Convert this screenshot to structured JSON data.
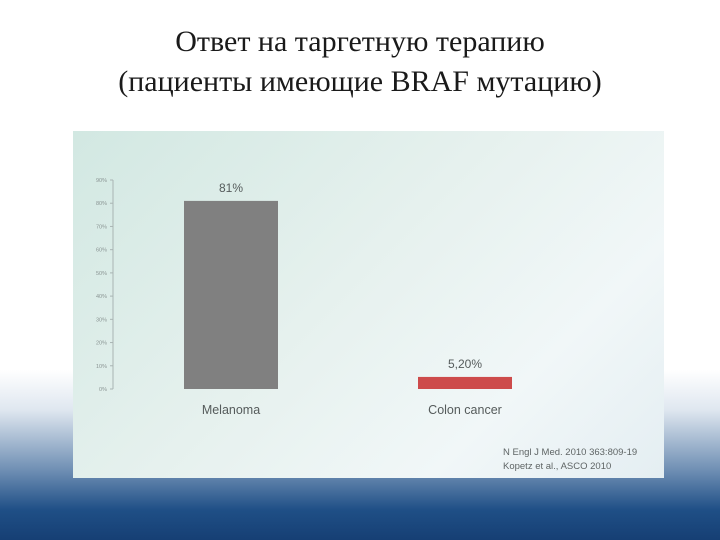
{
  "slide": {
    "title_line1": "Ответ на таргетную терапию",
    "title_line2": "(пациенты имеющие BRAF мутацию)"
  },
  "chart_data": {
    "type": "bar",
    "categories": [
      "Melanoma",
      "Colon cancer"
    ],
    "values": [
      81,
      5.2
    ],
    "value_labels": [
      "81%",
      "5,20%"
    ],
    "colors": [
      "#808080",
      "#cd4b4b"
    ],
    "ylim": [
      0,
      90
    ],
    "yticks": [
      {
        "value": 0,
        "label": "0%"
      },
      {
        "value": 10,
        "label": "10%"
      },
      {
        "value": 20,
        "label": "20%"
      },
      {
        "value": 30,
        "label": "30%"
      },
      {
        "value": 40,
        "label": "40%"
      },
      {
        "value": 50,
        "label": "50%"
      },
      {
        "value": 60,
        "label": "60%"
      },
      {
        "value": 70,
        "label": "70%"
      },
      {
        "value": 80,
        "label": "80%"
      },
      {
        "value": 90,
        "label": "90%"
      }
    ],
    "sources": [
      "N Engl J Med. 2010 363:809-19",
      "Kopetz et al., ASCO 2010"
    ],
    "title": "",
    "xlabel": "",
    "ylabel": ""
  }
}
